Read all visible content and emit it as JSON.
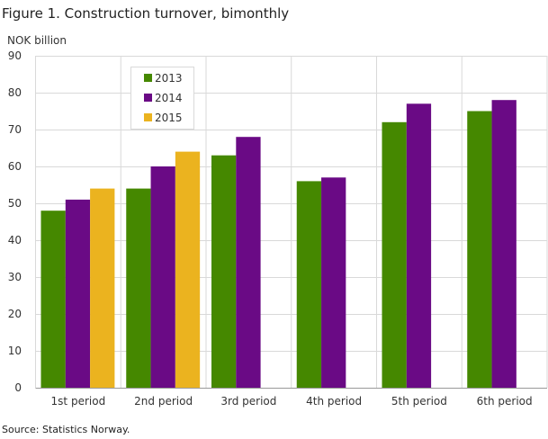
{
  "title": "Figure 1. Construction turnover, bimonthly",
  "source": "Source: Statistics Norway.",
  "chart_data": {
    "type": "bar",
    "title": "Figure 1. Construction turnover, bimonthly",
    "ylabel": "NOK billion",
    "xlabel": "",
    "ylim": [
      0,
      90
    ],
    "yticks": [
      0,
      10,
      20,
      30,
      40,
      50,
      60,
      70,
      80,
      90
    ],
    "grid": true,
    "legend_placement": "top-left",
    "categories": [
      "1st period",
      "2nd period",
      "3rd period",
      "4th period",
      "5th period",
      "6th period"
    ],
    "series": [
      {
        "name": "2013",
        "color": "#458800",
        "values": [
          48,
          54,
          63,
          56,
          72,
          75
        ]
      },
      {
        "name": "2014",
        "color": "#6a0a85",
        "values": [
          51,
          60,
          68,
          57,
          77,
          78
        ]
      },
      {
        "name": "2015",
        "color": "#ebb31f",
        "values": [
          54,
          64,
          null,
          null,
          null,
          null
        ]
      }
    ]
  }
}
